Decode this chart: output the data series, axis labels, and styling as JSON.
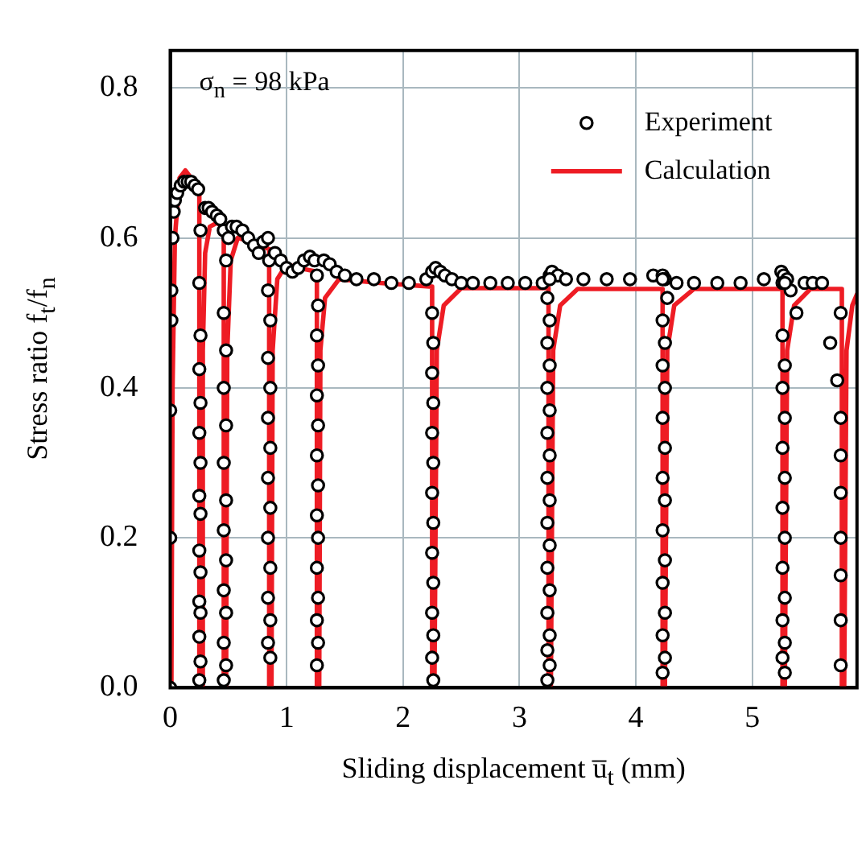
{
  "chart_data": {
    "type": "scatter",
    "xlabel": "Sliding displacement u̅$_{t}$ (mm)",
    "ylabel": "Stress ratio f$_{t}$/f$_{n}$",
    "annotations": [
      "σ$_{n}$ = 98 kPa"
    ],
    "xlim": [
      0,
      5.9
    ],
    "xticks": [
      0,
      1,
      2,
      3,
      4,
      5
    ],
    "ylim": [
      0,
      0.85
    ],
    "yticks": [
      {
        "value": 0,
        "label": "0.0"
      },
      {
        "value": 0.2,
        "label": "0.2"
      },
      {
        "value": 0.4,
        "label": "0.4"
      },
      {
        "value": 0.6,
        "label": "0.6"
      },
      {
        "value": 0.8,
        "label": "0.8"
      }
    ],
    "grid": true,
    "legend": "top right",
    "series": [
      {
        "name": "Experiment",
        "marker": "circle",
        "color": "#000000",
        "x": [
          0,
          0,
          0,
          0.01,
          0.01,
          0.02,
          0.03,
          0.04,
          0.06,
          0.09,
          0.12,
          0.15,
          0.18,
          0.21,
          0.24,
          0.26,
          0.25,
          0.26,
          0.25,
          0.26,
          0.25,
          0.26,
          0.25,
          0.26,
          0.25,
          0.26,
          0.25,
          0.26,
          0.25,
          0.26,
          0.25,
          0.3,
          0.33,
          0.36,
          0.4,
          0.43,
          0.46,
          0.48,
          0.46,
          0.48,
          0.46,
          0.48,
          0.46,
          0.48,
          0.46,
          0.48,
          0.46,
          0.48,
          0.46,
          0.48,
          0.46,
          0.5,
          0.53,
          0.57,
          0.62,
          0.67,
          0.72,
          0.76,
          0.8,
          0.84,
          0.85,
          0.84,
          0.86,
          0.84,
          0.86,
          0.84,
          0.86,
          0.84,
          0.86,
          0.84,
          0.86,
          0.84,
          0.86,
          0.84,
          0.86,
          0.9,
          0.95,
          1.0,
          1.05,
          1.1,
          1.15,
          1.2,
          1.24,
          1.26,
          1.27,
          1.26,
          1.27,
          1.26,
          1.27,
          1.26,
          1.27,
          1.26,
          1.27,
          1.26,
          1.27,
          1.26,
          1.27,
          1.26,
          1.32,
          1.37,
          1.43,
          1.5,
          1.6,
          1.75,
          1.9,
          2.05,
          2.2,
          2.25,
          2.28,
          2.32,
          2.36,
          2.25,
          2.26,
          2.25,
          2.26,
          2.25,
          2.26,
          2.25,
          2.26,
          2.25,
          2.26,
          2.25,
          2.26,
          2.25,
          2.26,
          2.42,
          2.5,
          2.6,
          2.75,
          2.9,
          3.05,
          3.2,
          3.26,
          3.28,
          3.33,
          3.24,
          3.26,
          3.24,
          3.26,
          3.24,
          3.26,
          3.24,
          3.26,
          3.24,
          3.26,
          3.24,
          3.26,
          3.24,
          3.26,
          3.24,
          3.26,
          3.24,
          3.26,
          3.24,
          3.26,
          3.4,
          3.55,
          3.75,
          3.95,
          4.15,
          4.23,
          4.27,
          4.23,
          4.25,
          4.23,
          4.25,
          4.23,
          4.25,
          4.23,
          4.25,
          4.23,
          4.25,
          4.23,
          4.25,
          4.23,
          4.25,
          4.23,
          4.25,
          4.23,
          4.35,
          4.5,
          4.7,
          4.9,
          5.1,
          5.25,
          5.27,
          5.3,
          5.33,
          5.38,
          5.26,
          5.28,
          5.26,
          5.28,
          5.26,
          5.28,
          5.26,
          5.28,
          5.26,
          5.28,
          5.26,
          5.28,
          5.26,
          5.28,
          5.26,
          5.28,
          5.45,
          5.52,
          5.6,
          5.67,
          5.73,
          5.76,
          5.76,
          5.76,
          5.76,
          5.76,
          5.76,
          5.76,
          5.76
        ],
        "values": [
          0,
          0.2,
          0.37,
          0.49,
          0.53,
          0.6,
          0.635,
          0.65,
          0.66,
          0.67,
          0.675,
          0.675,
          0.675,
          0.67,
          0.665,
          0.61,
          0.54,
          0.47,
          0.425,
          0.38,
          0.34,
          0.3,
          0.256,
          0.232,
          0.183,
          0.154,
          0.115,
          0.1,
          0.068,
          0.035,
          0.01,
          0.64,
          0.64,
          0.635,
          0.63,
          0.625,
          0.61,
          0.57,
          0.5,
          0.45,
          0.4,
          0.35,
          0.3,
          0.25,
          0.21,
          0.17,
          0.13,
          0.1,
          0.06,
          0.03,
          0.01,
          0.6,
          0.615,
          0.615,
          0.61,
          0.6,
          0.59,
          0.58,
          0.595,
          0.6,
          0.57,
          0.53,
          0.49,
          0.44,
          0.4,
          0.36,
          0.32,
          0.28,
          0.24,
          0.2,
          0.16,
          0.12,
          0.09,
          0.06,
          0.04,
          0.58,
          0.57,
          0.56,
          0.555,
          0.56,
          0.57,
          0.575,
          0.57,
          0.55,
          0.51,
          0.47,
          0.43,
          0.39,
          0.35,
          0.31,
          0.27,
          0.23,
          0.2,
          0.16,
          0.12,
          0.09,
          0.06,
          0.03,
          0.57,
          0.565,
          0.555,
          0.55,
          0.545,
          0.545,
          0.54,
          0.54,
          0.545,
          0.555,
          0.56,
          0.555,
          0.55,
          0.5,
          0.46,
          0.42,
          0.38,
          0.34,
          0.3,
          0.26,
          0.22,
          0.18,
          0.14,
          0.1,
          0.07,
          0.04,
          0.01,
          0.545,
          0.54,
          0.54,
          0.54,
          0.54,
          0.54,
          0.54,
          0.55,
          0.555,
          0.55,
          0.52,
          0.49,
          0.46,
          0.43,
          0.4,
          0.37,
          0.34,
          0.31,
          0.28,
          0.25,
          0.22,
          0.19,
          0.16,
          0.13,
          0.1,
          0.07,
          0.05,
          0.03,
          0.01,
          0.545,
          0.545,
          0.545,
          0.545,
          0.545,
          0.55,
          0.55,
          0.52,
          0.49,
          0.46,
          0.43,
          0.4,
          0.36,
          0.32,
          0.28,
          0.25,
          0.21,
          0.17,
          0.14,
          0.1,
          0.07,
          0.04,
          0.02,
          0.545,
          0.545,
          0.54,
          0.54,
          0.54,
          0.54,
          0.545,
          0.555,
          0.55,
          0.545,
          0.53,
          0.5,
          0.47,
          0.43,
          0.4,
          0.36,
          0.32,
          0.28,
          0.24,
          0.2,
          0.16,
          0.12,
          0.09,
          0.06,
          0.04,
          0.02,
          0.54,
          0.54,
          0.54,
          0.54,
          0.54,
          0.46,
          0.41,
          0.36,
          0.31,
          0.26,
          0.2,
          0.15,
          0.09,
          0.03,
          0.5
        ]
      },
      {
        "name": "Calculation",
        "type": "line",
        "color": "#ee1c24",
        "line_style": "solid",
        "x": [
          0.01,
          0.02,
          0.04,
          0.08,
          0.13,
          0.18,
          0.25,
          0.25,
          0.27,
          0.28,
          0.3,
          0.34,
          0.4,
          0.46,
          0.46,
          0.48,
          0.49,
          0.52,
          0.58,
          0.7,
          0.85,
          0.85,
          0.87,
          0.88,
          0.92,
          1.0,
          1.1,
          1.26,
          1.26,
          1.28,
          1.29,
          1.33,
          1.45,
          1.8,
          2.25,
          2.25,
          2.27,
          2.29,
          2.35,
          2.5,
          3.0,
          3.25,
          3.25,
          3.27,
          3.29,
          3.35,
          3.5,
          4.23,
          4.23,
          4.25,
          4.27,
          4.33,
          4.5,
          5.26,
          5.26,
          5.28,
          5.3,
          5.36,
          5.5,
          5.77,
          5.77,
          5.79,
          5.81,
          5.86,
          5.9
        ],
        "values": [
          0,
          0.4,
          0.6,
          0.68,
          0.69,
          0.68,
          0.665,
          0,
          0,
          0.45,
          0.58,
          0.615,
          0.62,
          0.615,
          0,
          0,
          0.45,
          0.57,
          0.6,
          0.595,
          0.585,
          0,
          0,
          0.45,
          0.545,
          0.565,
          0.56,
          0.555,
          0,
          0,
          0.45,
          0.52,
          0.545,
          0.54,
          0.535,
          0,
          0,
          0.45,
          0.51,
          0.533,
          0.533,
          0.533,
          0,
          0,
          0.45,
          0.51,
          0.532,
          0.532,
          0,
          0,
          0.45,
          0.51,
          0.532,
          0.532,
          0,
          0,
          0.45,
          0.51,
          0.532,
          0.532,
          0,
          0,
          0.45,
          0.51,
          0.525
        ]
      }
    ]
  }
}
